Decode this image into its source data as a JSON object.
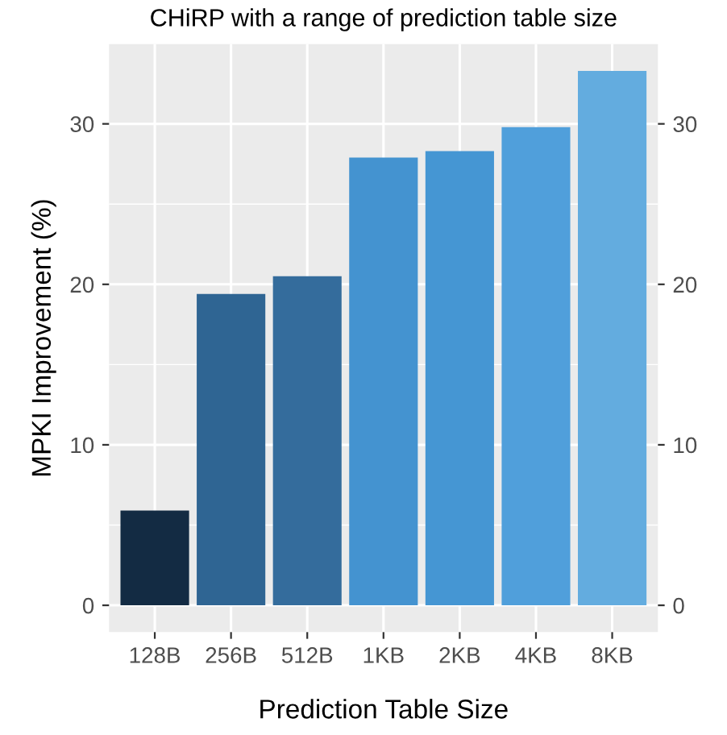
{
  "chart_data": {
    "type": "bar",
    "title": "CHiRP with a range of prediction table size",
    "xlabel": "Prediction Table Size",
    "ylabel": "MPKI Improvement (%)",
    "categories": [
      "128B",
      "256B",
      "512B",
      "1KB",
      "2KB",
      "4KB",
      "8KB"
    ],
    "values": [
      5.9,
      19.4,
      20.5,
      27.9,
      28.3,
      29.8,
      33.3
    ],
    "colors": [
      "#132b43",
      "#2f6593",
      "#346c9c",
      "#4493d0",
      "#4596d3",
      "#509fdb",
      "#63acdf"
    ],
    "ylim": [
      -1.67,
      34.97
    ],
    "yticks": [
      0,
      10,
      20,
      30
    ],
    "y2lim": [
      -1.67,
      34.97
    ],
    "y2ticks": [
      0,
      10,
      20,
      30
    ],
    "grid": true
  }
}
